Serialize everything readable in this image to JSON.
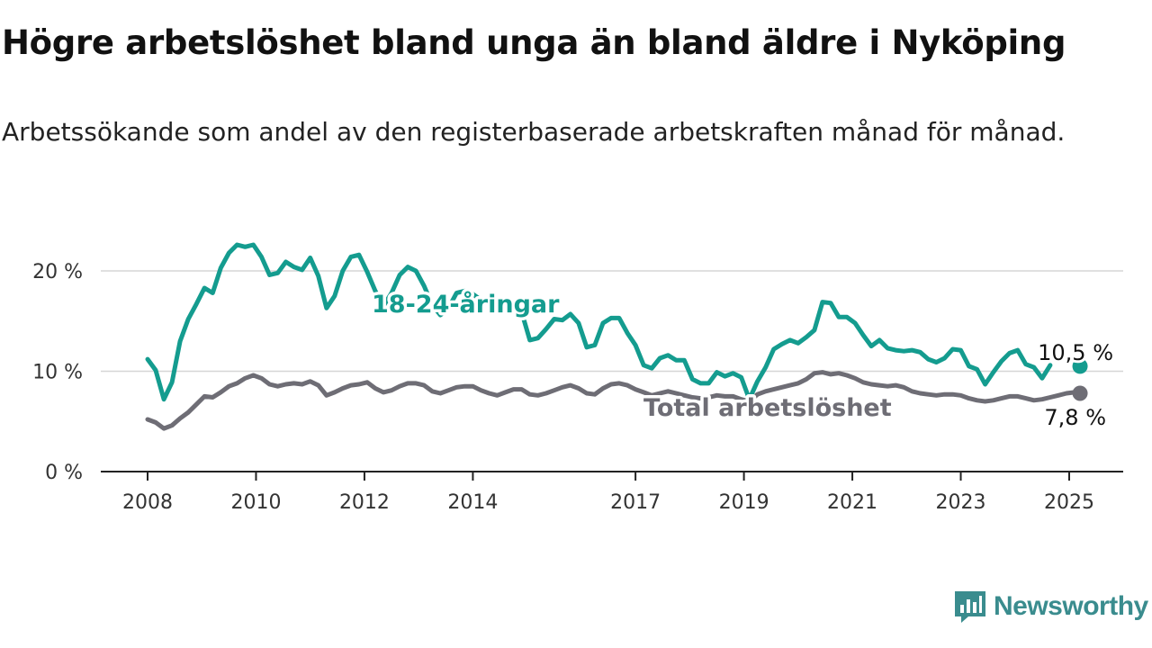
{
  "title": "Högre arbetslöshet bland unga än bland äldre i Nyköping",
  "subtitle": "Arbetssökande som andel av den registerbaserade arbetskraften månad för månad.",
  "brand": {
    "name": "Newsworthy",
    "icon": "newsworthy-logo-icon",
    "color": "#3a8c8e"
  },
  "chart_data": {
    "type": "line",
    "title": "Högre arbetslöshet bland unga än bland äldre i Nyköping",
    "subtitle": "Arbetssökande som andel av den registerbaserade arbetskraften månad för månad.",
    "xlabel": "",
    "ylabel": "",
    "x_ticks": [
      2008,
      2010,
      2012,
      2014,
      2017,
      2019,
      2021,
      2023,
      2025
    ],
    "x_range": [
      2007.5,
      2026.05
    ],
    "y_ticks": [
      0,
      10,
      20
    ],
    "y_tick_labels": [
      "0 %",
      "10 %",
      "20 %"
    ],
    "ylim": [
      0,
      23.5
    ],
    "grid": "horizontal",
    "series": [
      {
        "name": "18-24-åringar",
        "color": "#149c8f",
        "end_label": "10,5 %",
        "x": [
          2008.0,
          2008.15,
          2008.3,
          2008.45,
          2008.6,
          2008.75,
          2008.9,
          2009.05,
          2009.2,
          2009.35,
          2009.5,
          2009.65,
          2009.8,
          2009.95,
          2010.1,
          2010.25,
          2010.4,
          2010.55,
          2010.7,
          2010.85,
          2011.0,
          2011.15,
          2011.3,
          2011.45,
          2011.6,
          2011.75,
          2011.9,
          2012.05,
          2012.2,
          2012.35,
          2012.5,
          2012.65,
          2012.8,
          2012.95,
          2013.1,
          2013.25,
          2013.4,
          2013.55,
          2013.7,
          2013.85,
          2014.0,
          2014.15,
          2014.3,
          2014.45,
          2014.6,
          2014.75,
          2014.9,
          2015.05,
          2015.2,
          2015.35,
          2015.5,
          2015.65,
          2015.8,
          2015.95,
          2016.1,
          2016.25,
          2016.4,
          2016.55,
          2016.7,
          2016.85,
          2017.0,
          2017.15,
          2017.3,
          2017.45,
          2017.6,
          2017.75,
          2017.9,
          2018.05,
          2018.2,
          2018.35,
          2018.5,
          2018.65,
          2018.8,
          2018.95,
          2019.1,
          2019.25,
          2019.4,
          2019.55,
          2019.7,
          2019.85,
          2020.0,
          2020.15,
          2020.3,
          2020.45,
          2020.6,
          2020.75,
          2020.9,
          2021.05,
          2021.2,
          2021.35,
          2021.5,
          2021.65,
          2021.8,
          2021.95,
          2022.1,
          2022.25,
          2022.4,
          2022.55,
          2022.7,
          2022.85,
          2023.0,
          2023.15,
          2023.3,
          2023.45,
          2023.6,
          2023.75,
          2023.9,
          2024.05,
          2024.2,
          2024.35,
          2024.5,
          2024.65
        ],
        "y": [
          11.2,
          10.1,
          7.2,
          8.9,
          13.0,
          15.2,
          16.7,
          18.3,
          17.8,
          20.3,
          21.8,
          22.6,
          22.4,
          22.6,
          21.4,
          19.6,
          19.8,
          20.9,
          20.4,
          20.1,
          21.3,
          19.5,
          16.3,
          17.5,
          20.0,
          21.4,
          21.6,
          19.9,
          18.0,
          16.5,
          17.8,
          19.6,
          20.4,
          20.0,
          18.5,
          16.6,
          15.6,
          16.3,
          17.8,
          18.0,
          17.7,
          17.1,
          16.8,
          16.2,
          16.8,
          16.7,
          15.9,
          13.1,
          13.3,
          14.2,
          15.2,
          15.1,
          15.7,
          14.8,
          12.4,
          12.6,
          14.8,
          15.3,
          15.3,
          13.8,
          12.6,
          10.6,
          10.3,
          11.3,
          11.6,
          11.1,
          11.1,
          9.2,
          8.8,
          8.8,
          9.9,
          9.5,
          9.8,
          9.4,
          7.2,
          9.0,
          10.4,
          12.2,
          12.7,
          13.1,
          12.8,
          13.4,
          14.1,
          16.9,
          16.8,
          15.4,
          15.4,
          14.8,
          13.6,
          12.5,
          13.1,
          12.3,
          12.1,
          12.0,
          12.1,
          11.9,
          11.2,
          10.9,
          11.3,
          12.2,
          12.1,
          10.5,
          10.2,
          8.7,
          9.9,
          11.0,
          11.8,
          12.1,
          10.7,
          10.4,
          9.3,
          10.6
        ],
        "end_x": 2025.2,
        "end_y": 10.5
      },
      {
        "name": "Total arbetslöshet",
        "color": "#6e6d75",
        "end_label": "7,8 %",
        "x": [
          2008.0,
          2008.15,
          2008.3,
          2008.45,
          2008.6,
          2008.75,
          2008.9,
          2009.05,
          2009.2,
          2009.35,
          2009.5,
          2009.65,
          2009.8,
          2009.95,
          2010.1,
          2010.25,
          2010.4,
          2010.55,
          2010.7,
          2010.85,
          2011.0,
          2011.15,
          2011.3,
          2011.45,
          2011.6,
          2011.75,
          2011.9,
          2012.05,
          2012.2,
          2012.35,
          2012.5,
          2012.65,
          2012.8,
          2012.95,
          2013.1,
          2013.25,
          2013.4,
          2013.55,
          2013.7,
          2013.85,
          2014.0,
          2014.15,
          2014.3,
          2014.45,
          2014.6,
          2014.75,
          2014.9,
          2015.05,
          2015.2,
          2015.35,
          2015.5,
          2015.65,
          2015.8,
          2015.95,
          2016.1,
          2016.25,
          2016.4,
          2016.55,
          2016.7,
          2016.85,
          2017.0,
          2017.15,
          2017.3,
          2017.45,
          2017.6,
          2017.75,
          2017.9,
          2018.05,
          2018.2,
          2018.35,
          2018.5,
          2018.65,
          2018.8,
          2018.95,
          2019.1,
          2019.25,
          2019.4,
          2019.55,
          2019.7,
          2019.85,
          2020.0,
          2020.15,
          2020.3,
          2020.45,
          2020.6,
          2020.75,
          2020.9,
          2021.05,
          2021.2,
          2021.35,
          2021.5,
          2021.65,
          2021.8,
          2021.95,
          2022.1,
          2022.25,
          2022.4,
          2022.55,
          2022.7,
          2022.85,
          2023.0,
          2023.15,
          2023.3,
          2023.45,
          2023.6,
          2023.75,
          2023.9,
          2024.05,
          2024.2,
          2024.35,
          2024.5,
          2024.65,
          2024.8,
          2024.95,
          2025.1
        ],
        "y": [
          5.2,
          4.9,
          4.3,
          4.6,
          5.3,
          5.9,
          6.7,
          7.5,
          7.4,
          7.9,
          8.5,
          8.8,
          9.3,
          9.6,
          9.3,
          8.7,
          8.5,
          8.7,
          8.8,
          8.7,
          9.0,
          8.6,
          7.6,
          7.9,
          8.3,
          8.6,
          8.7,
          8.9,
          8.3,
          7.9,
          8.1,
          8.5,
          8.8,
          8.8,
          8.6,
          8.0,
          7.8,
          8.1,
          8.4,
          8.5,
          8.5,
          8.1,
          7.8,
          7.6,
          7.9,
          8.2,
          8.2,
          7.7,
          7.6,
          7.8,
          8.1,
          8.4,
          8.6,
          8.3,
          7.8,
          7.7,
          8.3,
          8.7,
          8.8,
          8.6,
          8.2,
          7.9,
          7.6,
          7.8,
          8.0,
          7.8,
          7.6,
          7.4,
          7.3,
          7.4,
          7.6,
          7.5,
          7.5,
          7.2,
          7.0,
          7.7,
          8.0,
          8.2,
          8.4,
          8.6,
          8.8,
          9.2,
          9.8,
          9.9,
          9.7,
          9.8,
          9.6,
          9.3,
          8.9,
          8.7,
          8.6,
          8.5,
          8.6,
          8.4,
          8.0,
          7.8,
          7.7,
          7.6,
          7.7,
          7.7,
          7.6,
          7.3,
          7.1,
          7.0,
          7.1,
          7.3,
          7.5,
          7.5,
          7.3,
          7.1,
          7.2,
          7.4,
          7.6,
          7.8,
          7.9
        ],
        "end_x": 2025.2,
        "end_y": 7.8
      }
    ]
  }
}
